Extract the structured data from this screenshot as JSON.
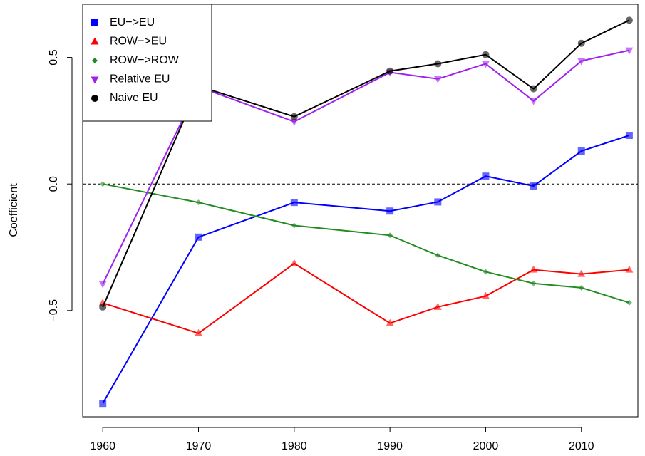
{
  "chart_data": {
    "type": "line",
    "y_label": "Coefficient",
    "x": [
      1960,
      1970,
      1980,
      1990,
      1995,
      2000,
      2005,
      2010,
      2015
    ],
    "xlim": [
      1957.9,
      2015.9
    ],
    "xticks": [
      1960,
      1970,
      1980,
      1990,
      2000,
      2010
    ],
    "ylim": [
      -0.92,
      0.71
    ],
    "yticks": [
      {
        "value": -0.5,
        "label": "−0.5"
      },
      {
        "value": 0,
        "label": "0.0"
      },
      0.5
    ],
    "reference_line": 0,
    "legend_position": "top-left",
    "series": [
      {
        "name": "EU−>EU",
        "color": "#0000ff",
        "marker": "square",
        "values": [
          -0.867,
          -0.21,
          -0.073,
          -0.107,
          -0.071,
          0.031,
          -0.008,
          0.13,
          0.192
        ]
      },
      {
        "name": "ROW−>EU",
        "color": "#ff0000",
        "marker": "triangle-up",
        "values": [
          -0.47,
          -0.59,
          -0.314,
          -0.55,
          -0.486,
          -0.443,
          -0.339,
          -0.356,
          -0.339
        ]
      },
      {
        "name": "ROW−>ROW",
        "color": "#228b22",
        "marker": "diamond",
        "values": [
          0,
          -0.073,
          -0.164,
          -0.203,
          -0.282,
          -0.347,
          -0.393,
          -0.41,
          -0.469
        ]
      },
      {
        "name": "Relative EU",
        "color": "#a020f0",
        "marker": "triangle-down",
        "values": [
          -0.395,
          0.384,
          0.246,
          0.441,
          0.415,
          0.475,
          0.328,
          0.486,
          0.528
        ]
      },
      {
        "name": "Naive EU",
        "color": "#000000",
        "marker": "circle",
        "values": [
          -0.486,
          0.387,
          0.266,
          0.446,
          0.475,
          0.511,
          0.376,
          0.556,
          0.647
        ]
      }
    ]
  }
}
